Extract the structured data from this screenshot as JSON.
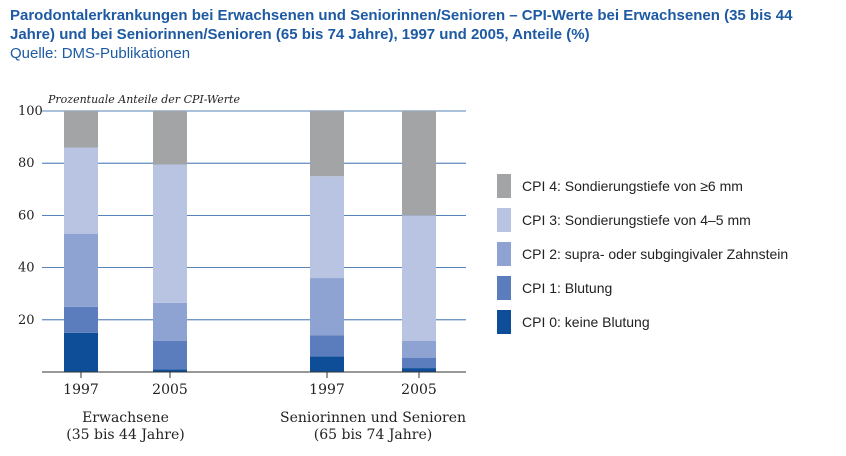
{
  "title": "Parodontalerkrankungen bei Erwachsenen und Seniorinnen/Senioren – CPI-Werte bei Erwachsenen (35 bis 44 Jahre) und bei Seniorinnen/Senioren (65 bis 74 Jahre), 1997 und 2005, Anteile (%)",
  "subtitle": "Quelle: DMS-Publikationen",
  "chart_data": {
    "type": "bar",
    "stacked": true,
    "ylabel": "Prozentuale Anteile der CPI-Werte",
    "ylim": [
      0,
      100
    ],
    "yticks": [
      20,
      40,
      60,
      80,
      100
    ],
    "grid": true,
    "legend_position": "right",
    "categories": [
      "1997",
      "2005",
      "1997",
      "2005"
    ],
    "groups": [
      {
        "label_lines": [
          "Erwachsene",
          "(35 bis 44 Jahre)"
        ],
        "categories": [
          0,
          1
        ]
      },
      {
        "label_lines": [
          "Seniorinnen und Senioren",
          "(65 bis 74 Jahre)"
        ],
        "categories": [
          2,
          3
        ]
      }
    ],
    "series": [
      {
        "name": "CPI 0: keine Blutung",
        "color": "#0e4e98",
        "values": [
          15,
          1,
          6,
          1.5
        ]
      },
      {
        "name": "CPI 1: Blutung",
        "color": "#5b7dbd",
        "values": [
          10,
          11,
          8,
          4
        ]
      },
      {
        "name": "CPI 2: supra- oder subgingivaler Zahnstein",
        "color": "#8ea3d1",
        "values": [
          28,
          14.5,
          22,
          6.5
        ]
      },
      {
        "name": "CPI 3: Sondierungstiefe von 4–5 mm",
        "color": "#b8c4e2",
        "values": [
          33,
          53,
          39,
          48
        ]
      },
      {
        "name": "CPI 4: Sondierungstiefe von ≥6 mm",
        "color": "#a3a4a6",
        "values": [
          14,
          20.5,
          25,
          40
        ]
      }
    ]
  }
}
